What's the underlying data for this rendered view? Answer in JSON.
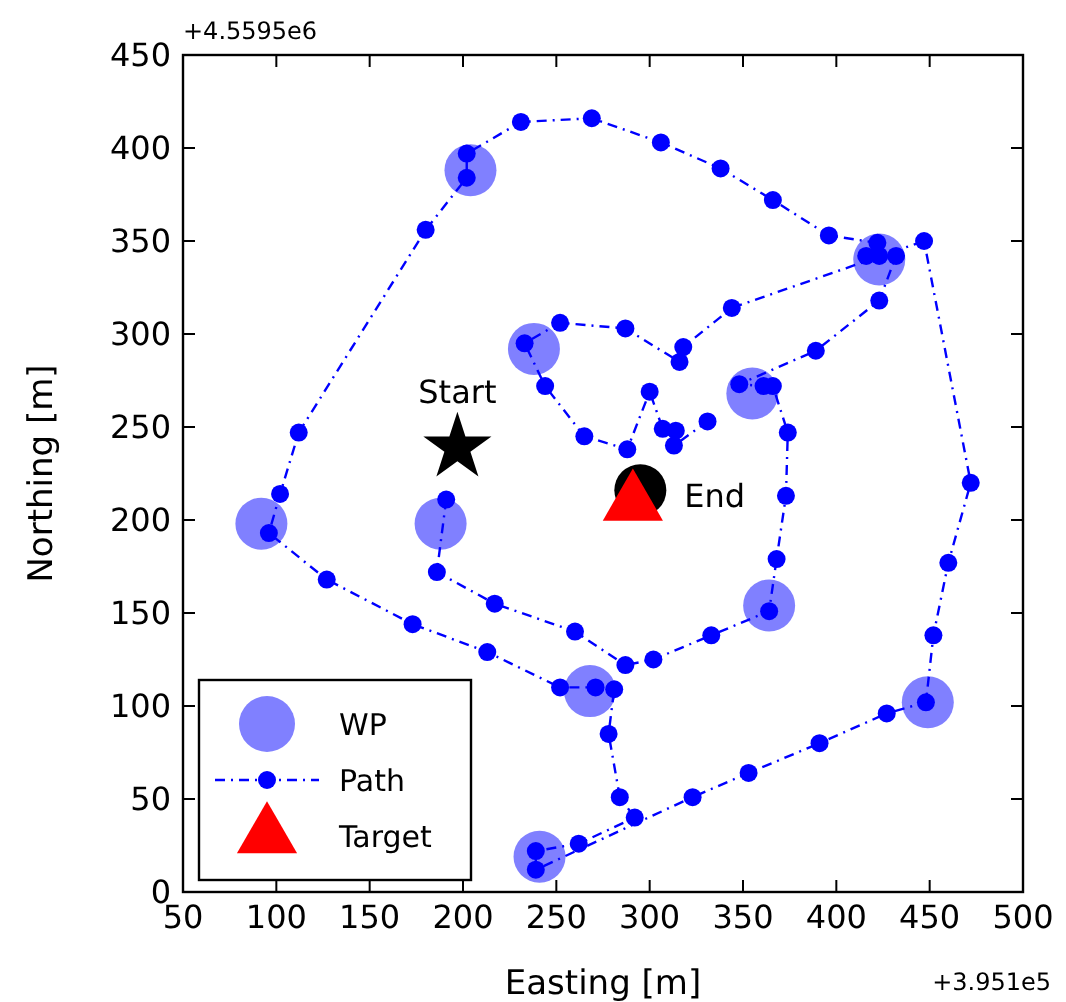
{
  "chart_data": {
    "type": "scatter",
    "xlabel": "Easting [m]",
    "ylabel": "Northing [m]",
    "xlim": [
      50,
      500
    ],
    "ylim": [
      0,
      450
    ],
    "xticks": [
      50,
      100,
      150,
      200,
      250,
      300,
      350,
      400,
      450,
      500
    ],
    "yticks": [
      0,
      50,
      100,
      150,
      200,
      250,
      300,
      350,
      400,
      450
    ],
    "grid": false,
    "legend": "bottom left",
    "annotations": [
      "+4.5595e6",
      "+3.951e5",
      {
        "text": "Start",
        "x": 197,
        "y": 239
      },
      {
        "text": "End",
        "x": 295,
        "y": 216
      }
    ],
    "series": [
      {
        "name": "WP",
        "type": "scatter",
        "marker": "circle",
        "color": "#8080ff",
        "x": [
          204,
          238,
          92,
          188,
          355,
          364,
          423,
          449,
          268,
          241
        ],
        "values": [
          388,
          292,
          198,
          198,
          268,
          154,
          340,
          102,
          108,
          19
        ]
      },
      {
        "name": "Path",
        "type": "line",
        "marker": "circle",
        "line_style": "dashed",
        "color": "#0000ff",
        "x": [
          191,
          186,
          217,
          260,
          287,
          302,
          333,
          364,
          368,
          373,
          374,
          366,
          361,
          348,
          389,
          423,
          432,
          423,
          416,
          422,
          396,
          366,
          338,
          306,
          269,
          231,
          202,
          202,
          180,
          112,
          102,
          96,
          127,
          173,
          213,
          252,
          271,
          281,
          278,
          284,
          292,
          262,
          239,
          239,
          323,
          353,
          391,
          427,
          448,
          452,
          460,
          472,
          447,
          344,
          318,
          316,
          287,
          252,
          233,
          244,
          265,
          288,
          300,
          307,
          314,
          313,
          331
        ],
        "values": [
          211,
          172,
          155,
          140,
          122,
          125,
          138,
          151,
          179,
          213,
          247,
          272,
          272,
          273,
          291,
          318,
          342,
          342,
          342,
          349,
          353,
          372,
          389,
          403,
          416,
          414,
          397,
          384,
          356,
          247,
          214,
          193,
          168,
          144,
          129,
          110,
          110,
          109,
          85,
          51,
          40,
          26,
          22,
          12,
          51,
          64,
          80,
          96,
          102,
          138,
          177,
          220,
          350,
          314,
          293,
          285,
          303,
          306,
          295,
          272,
          245,
          238,
          269,
          249,
          248,
          240,
          253
        ]
      },
      {
        "type": "scatter",
        "marker": "star",
        "color": "#000000",
        "x": [
          197
        ],
        "values": [
          239
        ]
      },
      {
        "type": "scatter",
        "marker": "circle",
        "color": "#000000",
        "x": [
          295
        ],
        "values": [
          216
        ]
      },
      {
        "name": "Target",
        "type": "scatter",
        "marker": "triangle",
        "color": "#ff0000",
        "x": [
          291
        ],
        "values": [
          209
        ]
      }
    ]
  }
}
